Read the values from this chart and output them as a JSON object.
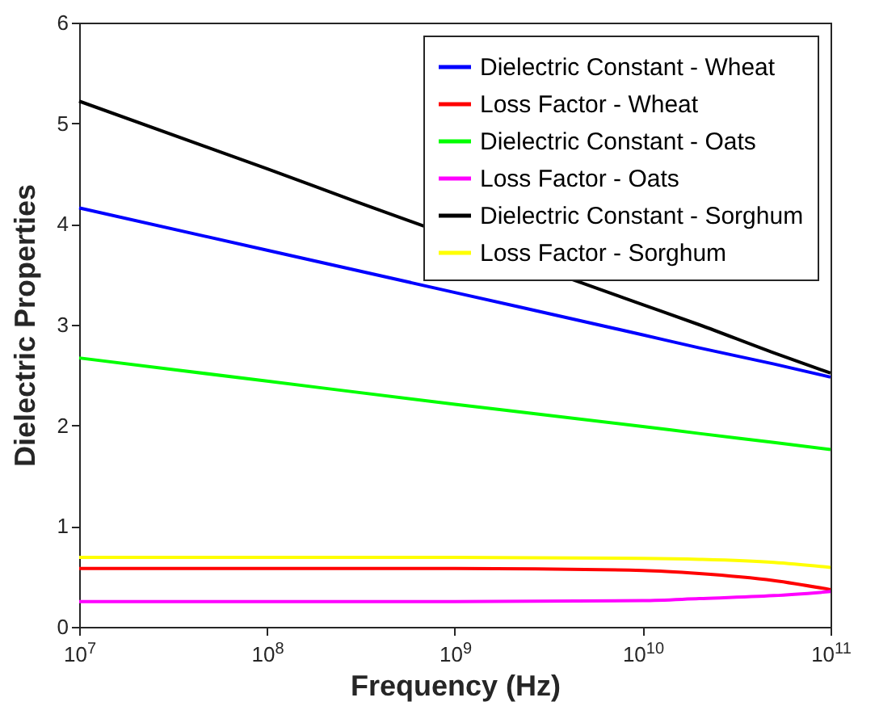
{
  "chart_data": {
    "type": "line",
    "xlabel": "Frequency (Hz)",
    "ylabel": "Dielectric Properties",
    "log": "x",
    "grid": false,
    "legend": "top right",
    "line_style": "solid",
    "marker": "none",
    "x": [
      10000000,
      100000000,
      1000000000,
      10000000000,
      20000000000,
      50000000000,
      100000000000
    ],
    "xlim": [
      10000000,
      100000000000
    ],
    "xticks": [
      {
        "value": 10000000,
        "label": "10$^{7}$"
      },
      {
        "value": 100000000,
        "label": "10$^{8}$"
      },
      {
        "value": 1000000000,
        "label": "10$^{9}$"
      },
      {
        "value": 10000000000,
        "label": "10$^{10}$"
      },
      {
        "value": 100000000000,
        "label": "10$^{11}$"
      }
    ],
    "ylim": [
      0,
      6
    ],
    "yticks": [
      0,
      1,
      2,
      3,
      4,
      5,
      6
    ],
    "series": [
      {
        "name": "Dielectric Constant - Wheat",
        "color": "#0000ff",
        "values": [
          4.16,
          3.74,
          3.32,
          2.9,
          2.77,
          2.61,
          2.48
        ]
      },
      {
        "name": "Loss Factor - Wheat",
        "color": "#ff0000",
        "values": [
          0.58,
          0.58,
          0.58,
          0.56,
          0.53,
          0.46,
          0.37
        ]
      },
      {
        "name": "Dielectric Constant - Oats",
        "color": "#00ff00",
        "values": [
          2.67,
          2.44,
          2.21,
          1.99,
          1.92,
          1.83,
          1.76
        ]
      },
      {
        "name": "Loss Factor - Oats",
        "color": "#ff00ff",
        "values": [
          0.25,
          0.25,
          0.25,
          0.26,
          0.28,
          0.31,
          0.35
        ]
      },
      {
        "name": "Dielectric Constant - Sorghum",
        "color": "#000000",
        "x": [
          10000000,
          100000000,
          300000000,
          5000000000,
          10000000000,
          20000000000,
          50000000000,
          100000000000
        ],
        "values": [
          5.22,
          4.55,
          4.22,
          3.4,
          3.2,
          3.0,
          2.72,
          2.52
        ]
      },
      {
        "name": "Loss Factor - Sorghum",
        "color": "#ffff00",
        "values": [
          0.69,
          0.69,
          0.69,
          0.68,
          0.67,
          0.64,
          0.59
        ]
      }
    ]
  }
}
